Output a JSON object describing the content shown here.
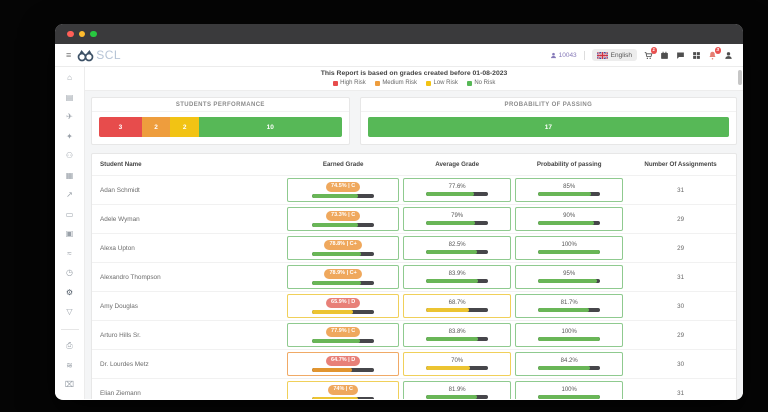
{
  "titlebar": {
    "dots": [
      "#ff5f57",
      "#febc2e",
      "#28c840"
    ]
  },
  "header": {
    "logo_text": "SCL",
    "user_id": "10043",
    "language_label": "English",
    "cart_badge": "1",
    "bell_badge": "3"
  },
  "sidebar": {
    "icons": [
      {
        "name": "home-icon",
        "glyph": "⌂"
      },
      {
        "name": "forms-icon",
        "glyph": "▤"
      },
      {
        "name": "plane-icon",
        "glyph": "✈"
      },
      {
        "name": "star-icon",
        "glyph": "✦"
      },
      {
        "name": "users-icon",
        "glyph": "⚇"
      },
      {
        "name": "bank-icon",
        "glyph": "▦"
      },
      {
        "name": "share-icon",
        "glyph": "↗"
      },
      {
        "name": "card-icon",
        "glyph": "▭"
      },
      {
        "name": "briefcase-icon",
        "glyph": "▣"
      },
      {
        "name": "chart-icon",
        "glyph": "≈"
      },
      {
        "name": "clock-icon",
        "glyph": "◷"
      },
      {
        "name": "gear-icon",
        "glyph": "⚙",
        "active": true
      },
      {
        "name": "filter-icon",
        "glyph": "▽"
      }
    ],
    "icons_bottom": [
      {
        "name": "print-icon",
        "glyph": "⎙"
      },
      {
        "name": "signal-icon",
        "glyph": "≋"
      },
      {
        "name": "archive-icon",
        "glyph": "⌧"
      }
    ]
  },
  "report": {
    "note": "This Report is based on grades created before 01-08-2023",
    "legend": [
      {
        "label": "High Risk",
        "color": "#e74c4c"
      },
      {
        "label": "Medium Risk",
        "color": "#ee9d3d"
      },
      {
        "label": "Low Risk",
        "color": "#f2c314"
      },
      {
        "label": "No Risk",
        "color": "#57b857"
      }
    ]
  },
  "summary_cards": [
    {
      "title": "STUDENTS PERFORMANCE",
      "flex": "251",
      "segments": [
        {
          "value": "3",
          "color": "#e74c4c",
          "weight": 3
        },
        {
          "value": "2",
          "color": "#ee9d3d",
          "weight": 2
        },
        {
          "value": "2",
          "color": "#f2c314",
          "weight": 2
        },
        {
          "value": "10",
          "color": "#57b857",
          "weight": 10
        }
      ]
    },
    {
      "title": "PROBABILITY OF PASSING",
      "flex": "367",
      "segments": [
        {
          "value": "17",
          "color": "#57b857",
          "weight": 17
        }
      ]
    }
  ],
  "table": {
    "columns": [
      "Student Name",
      "Earned Grade",
      "Average Grade",
      "Probability of passing",
      "Number Of Assignments"
    ],
    "rows": [
      {
        "name": "Adan Schmidt",
        "earned": {
          "badge": "74.5% | C",
          "badge_bg": "#efa85d",
          "pct": 74.5,
          "fill": "#69b657",
          "border": "#8fca8f"
        },
        "average": {
          "label": "77.6%",
          "pct": 77.6,
          "fill": "#69b657",
          "border": "#8fca8f"
        },
        "probability": {
          "label": "85%",
          "pct": 85,
          "fill": "#69b657",
          "border": "#8fca8f"
        },
        "assignments": "31"
      },
      {
        "name": "Adele Wyman",
        "earned": {
          "badge": "73.3% | C",
          "badge_bg": "#efa85d",
          "pct": 73.3,
          "fill": "#69b657",
          "border": "#8fca8f"
        },
        "average": {
          "label": "79%",
          "pct": 79,
          "fill": "#69b657",
          "border": "#8fca8f"
        },
        "probability": {
          "label": "90%",
          "pct": 90,
          "fill": "#69b657",
          "border": "#8fca8f"
        },
        "assignments": "29"
      },
      {
        "name": "Alexa Upton",
        "earned": {
          "badge": "78.8% | C+",
          "badge_bg": "#efa85d",
          "pct": 78.8,
          "fill": "#69b657",
          "border": "#8fca8f"
        },
        "average": {
          "label": "82.5%",
          "pct": 82.5,
          "fill": "#69b657",
          "border": "#8fca8f"
        },
        "probability": {
          "label": "100%",
          "pct": 100,
          "fill": "#69b657",
          "border": "#8fca8f"
        },
        "assignments": "29"
      },
      {
        "name": "Alexandro Thompson",
        "earned": {
          "badge": "78.9% | C+",
          "badge_bg": "#efa85d",
          "pct": 78.9,
          "fill": "#69b657",
          "border": "#8fca8f"
        },
        "average": {
          "label": "83.9%",
          "pct": 83.9,
          "fill": "#69b657",
          "border": "#8fca8f"
        },
        "probability": {
          "label": "95%",
          "pct": 95,
          "fill": "#69b657",
          "border": "#8fca8f"
        },
        "assignments": "31"
      },
      {
        "name": "Amy Douglas",
        "earned": {
          "badge": "65.9% | D",
          "badge_bg": "#e88078",
          "pct": 65.9,
          "fill": "#ecc431",
          "border": "#f0d05a"
        },
        "average": {
          "label": "68.7%",
          "pct": 68.7,
          "fill": "#ecc431",
          "border": "#f0d05a"
        },
        "probability": {
          "label": "81.7%",
          "pct": 81.7,
          "fill": "#69b657",
          "border": "#8fca8f"
        },
        "assignments": "30"
      },
      {
        "name": "Arturo Hills Sr.",
        "earned": {
          "badge": "77.9% | C",
          "badge_bg": "#efa85d",
          "pct": 77.9,
          "fill": "#69b657",
          "border": "#8fca8f"
        },
        "average": {
          "label": "83.8%",
          "pct": 83.8,
          "fill": "#69b657",
          "border": "#8fca8f"
        },
        "probability": {
          "label": "100%",
          "pct": 100,
          "fill": "#69b657",
          "border": "#8fca8f"
        },
        "assignments": "29"
      },
      {
        "name": "Dr. Lourdes Metz",
        "earned": {
          "badge": "64.7% | D",
          "badge_bg": "#e88078",
          "pct": 64.7,
          "fill": "#e2952f",
          "border": "#f0aa66"
        },
        "average": {
          "label": "70%",
          "pct": 70,
          "fill": "#ecc431",
          "border": "#f0d05a"
        },
        "probability": {
          "label": "84.2%",
          "pct": 84.2,
          "fill": "#69b657",
          "border": "#8fca8f"
        },
        "assignments": "30"
      },
      {
        "name": "Elian Ziemann",
        "earned": {
          "badge": "74% | C",
          "badge_bg": "#efa85d",
          "pct": 74,
          "fill": "#ecc431",
          "border": "#f0d05a"
        },
        "average": {
          "label": "81.9%",
          "pct": 81.9,
          "fill": "#69b657",
          "border": "#8fca8f"
        },
        "probability": {
          "label": "100%",
          "pct": 100,
          "fill": "#69b657",
          "border": "#8fca8f"
        },
        "assignments": "31"
      }
    ]
  }
}
